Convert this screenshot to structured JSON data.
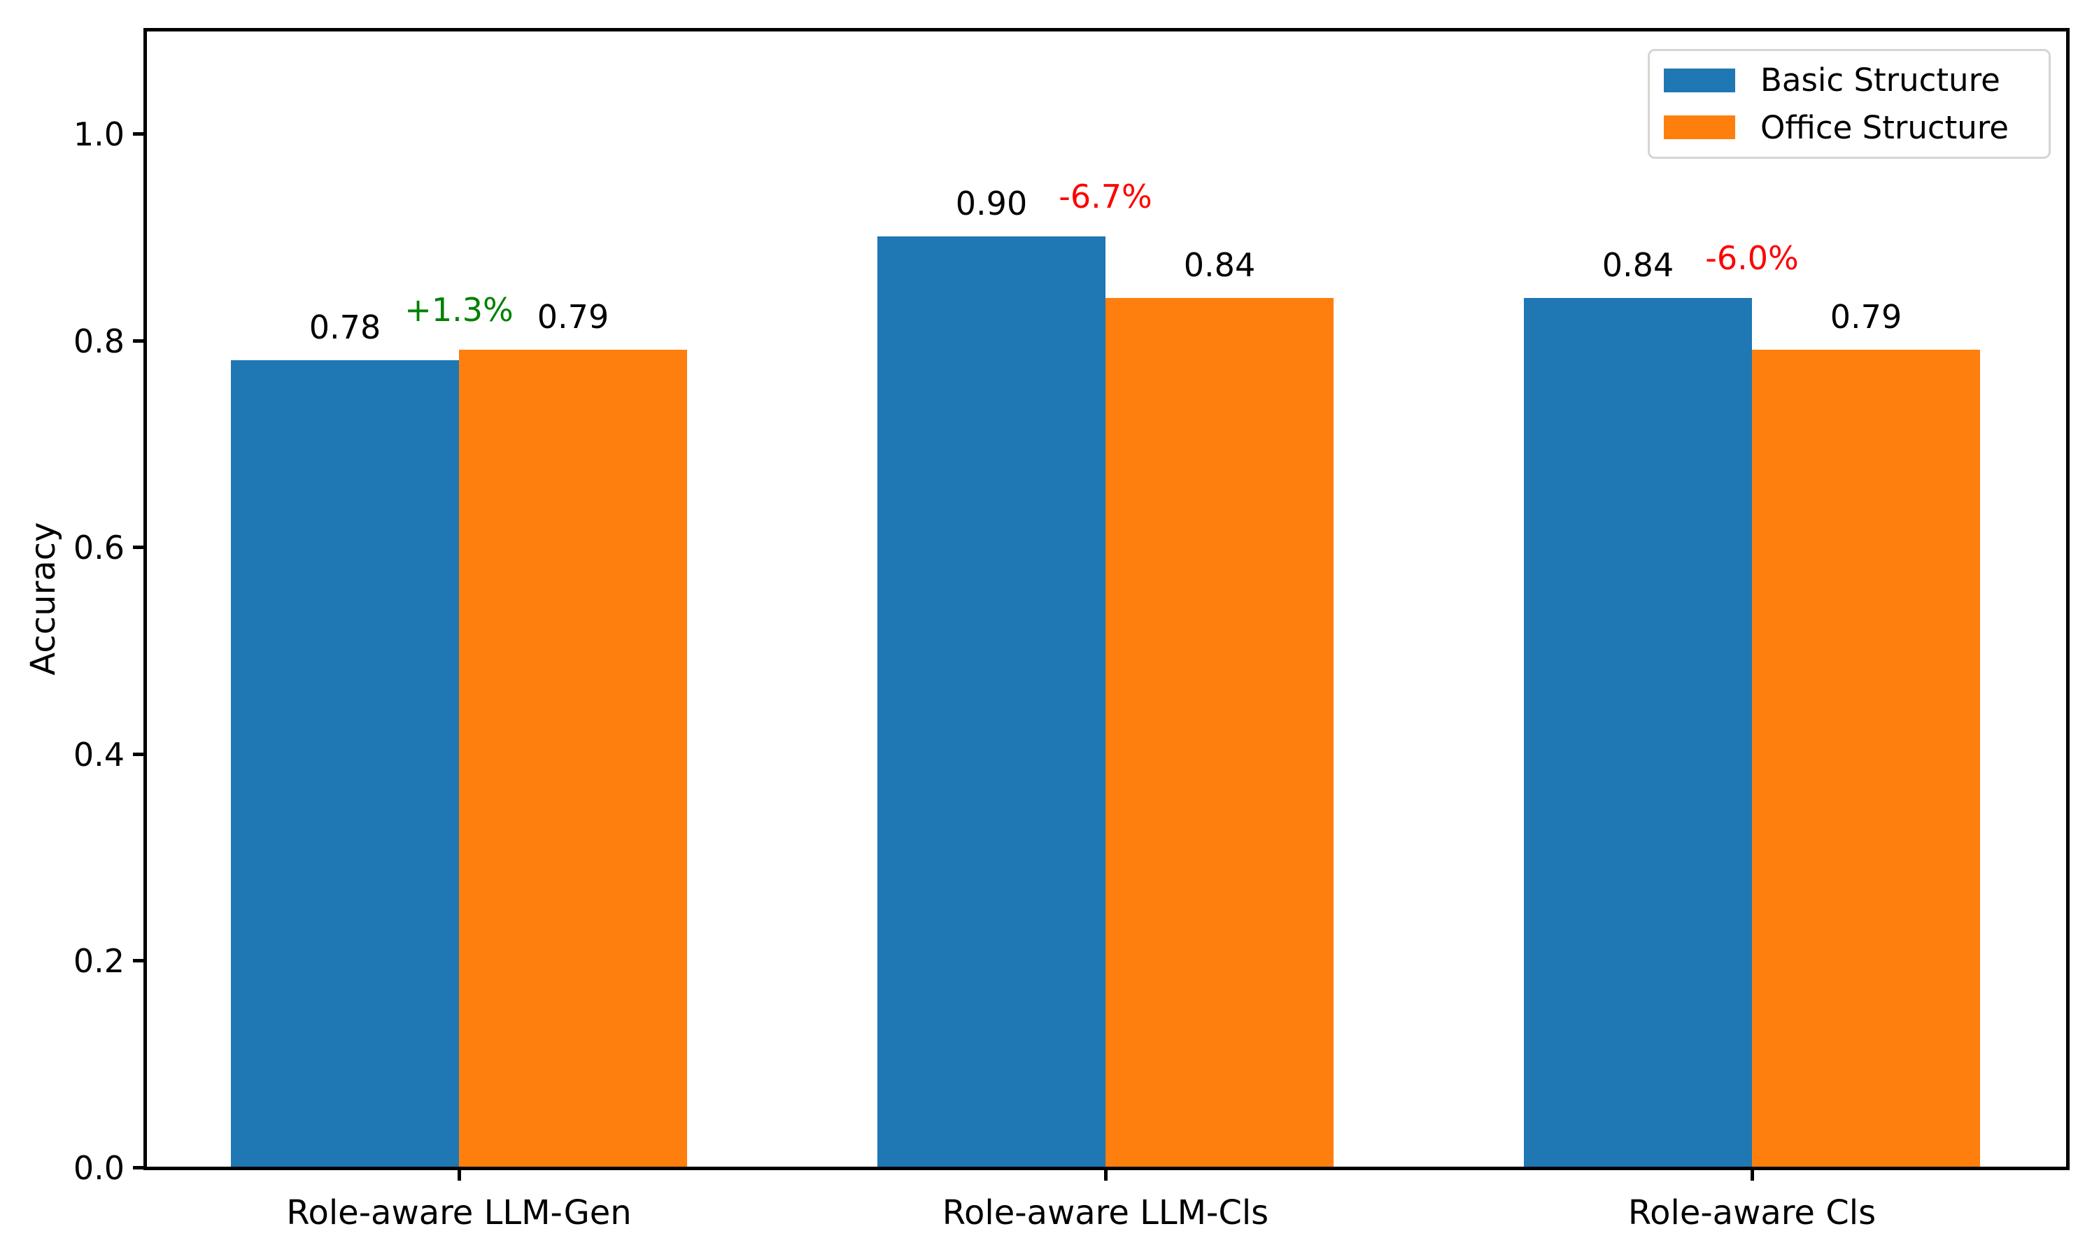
{
  "chart_data": {
    "type": "bar",
    "title": "",
    "xlabel": "",
    "ylabel": "Accuracy",
    "categories": [
      "Role-aware LLM-Gen",
      "Role-aware LLM-Cls",
      "Role-aware Cls"
    ],
    "series": [
      {
        "name": "Basic Structure",
        "color": "#1f77b4",
        "values": [
          0.78,
          0.9,
          0.84
        ]
      },
      {
        "name": "Office Structure",
        "color": "#ff7f0e",
        "values": [
          0.79,
          0.84,
          0.79
        ]
      }
    ],
    "value_labels": [
      [
        "0.78",
        "0.90",
        "0.84"
      ],
      [
        "0.79",
        "0.84",
        "0.79"
      ]
    ],
    "annotations": [
      {
        "text": "+1.3%",
        "color": "#008000"
      },
      {
        "text": "-6.7%",
        "color": "#ff0000"
      },
      {
        "text": "-6.0%",
        "color": "#ff0000"
      }
    ],
    "yticks": [
      "0.0",
      "0.2",
      "0.4",
      "0.6",
      "0.8",
      "1.0"
    ],
    "ylim": [
      0.0,
      1.1
    ],
    "grid": false,
    "legend": {
      "position": "upper right",
      "entries": [
        "Basic Structure",
        "Office Structure"
      ]
    }
  }
}
